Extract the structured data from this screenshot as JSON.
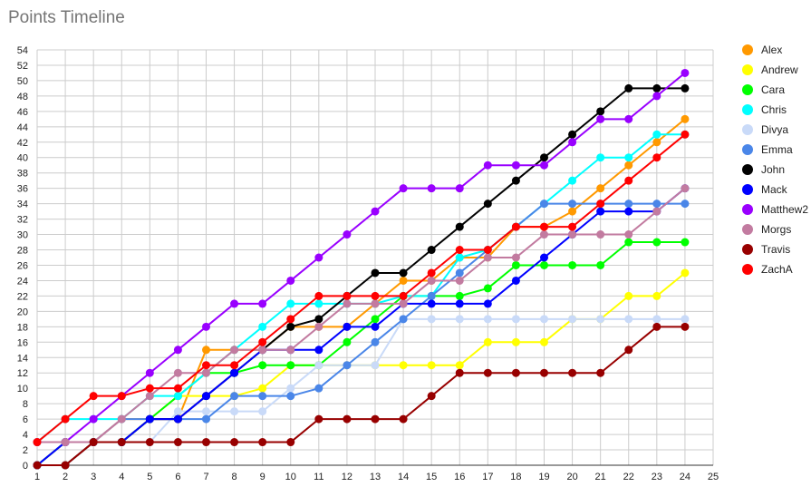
{
  "chart_data": {
    "type": "line",
    "title": "Points Timeline",
    "xlabel": "",
    "ylabel": "",
    "xlim": [
      1,
      25
    ],
    "ylim": [
      0,
      54
    ],
    "x_ticks": [
      1,
      2,
      3,
      4,
      5,
      6,
      7,
      8,
      9,
      10,
      11,
      12,
      13,
      14,
      15,
      16,
      17,
      18,
      19,
      20,
      21,
      22,
      23,
      24,
      25
    ],
    "y_ticks": [
      0,
      2,
      4,
      6,
      8,
      10,
      12,
      14,
      16,
      18,
      20,
      22,
      24,
      26,
      28,
      30,
      32,
      34,
      36,
      38,
      40,
      42,
      44,
      46,
      48,
      50,
      52,
      54
    ],
    "grid": true,
    "legend_position": "right",
    "x": [
      1,
      2,
      3,
      4,
      5,
      6,
      7,
      8,
      9,
      10,
      11,
      12,
      13,
      14,
      15,
      16,
      17,
      18,
      19,
      20,
      21,
      22,
      23,
      24
    ],
    "series": [
      {
        "name": "Alex",
        "color": "#ff9900",
        "values": [
          0,
          3,
          3,
          6,
          6,
          6,
          15,
          15,
          15,
          18,
          18,
          18,
          21,
          24,
          24,
          27,
          27,
          31,
          31,
          33,
          36,
          39,
          42,
          45
        ]
      },
      {
        "name": "Andrew",
        "color": "#ffff00",
        "values": [
          0,
          3,
          3,
          3,
          6,
          9,
          9,
          9,
          10,
          13,
          13,
          13,
          13,
          13,
          13,
          13,
          16,
          16,
          16,
          19,
          19,
          22,
          22,
          25
        ]
      },
      {
        "name": "Cara",
        "color": "#00ff00",
        "values": [
          0,
          3,
          3,
          3,
          6,
          9,
          12,
          12,
          13,
          13,
          13,
          16,
          19,
          22,
          22,
          22,
          23,
          26,
          26,
          26,
          26,
          29,
          29,
          29
        ]
      },
      {
        "name": "Chris",
        "color": "#00ffff",
        "values": [
          3,
          6,
          6,
          6,
          9,
          9,
          12,
          15,
          18,
          21,
          21,
          21,
          21,
          22,
          22,
          27,
          28,
          31,
          34,
          37,
          40,
          40,
          43,
          43
        ]
      },
      {
        "name": "Divya",
        "color": "#c9daf8",
        "values": [
          0,
          0,
          3,
          3,
          3,
          7,
          7,
          7,
          7,
          10,
          13,
          13,
          13,
          19,
          19,
          19,
          19,
          19,
          19,
          19,
          19,
          19,
          19,
          19
        ]
      },
      {
        "name": "Emma",
        "color": "#4a86e8",
        "values": [
          0,
          3,
          3,
          6,
          6,
          6,
          6,
          9,
          9,
          9,
          10,
          13,
          16,
          19,
          22,
          25,
          28,
          31,
          34,
          34,
          34,
          34,
          34,
          34
        ]
      },
      {
        "name": "John",
        "color": "#000000",
        "values": [
          0,
          0,
          3,
          3,
          6,
          6,
          9,
          12,
          15,
          18,
          19,
          22,
          25,
          25,
          28,
          31,
          34,
          37,
          40,
          43,
          46,
          49,
          49,
          49
        ]
      },
      {
        "name": "Mack",
        "color": "#0000ff",
        "values": [
          0,
          3,
          3,
          3,
          6,
          6,
          9,
          12,
          15,
          15,
          15,
          18,
          18,
          21,
          21,
          21,
          21,
          24,
          27,
          30,
          33,
          33,
          33,
          36
        ]
      },
      {
        "name": "Matthew2",
        "color": "#9900ff",
        "values": [
          3,
          3,
          6,
          9,
          12,
          15,
          18,
          21,
          21,
          24,
          27,
          30,
          33,
          36,
          36,
          36,
          39,
          39,
          39,
          42,
          45,
          45,
          48,
          51
        ]
      },
      {
        "name": "Morgs",
        "color": "#c27ba0",
        "values": [
          3,
          3,
          3,
          6,
          9,
          12,
          12,
          15,
          15,
          15,
          18,
          21,
          21,
          21,
          24,
          24,
          27,
          27,
          30,
          30,
          30,
          30,
          33,
          36
        ]
      },
      {
        "name": "Travis",
        "color": "#980000",
        "values": [
          0,
          0,
          3,
          3,
          3,
          3,
          3,
          3,
          3,
          3,
          6,
          6,
          6,
          6,
          9,
          12,
          12,
          12,
          12,
          12,
          12,
          15,
          18,
          18
        ]
      },
      {
        "name": "ZachA",
        "color": "#ff0000",
        "values": [
          3,
          6,
          9,
          9,
          10,
          10,
          13,
          13,
          16,
          19,
          22,
          22,
          22,
          22,
          25,
          28,
          28,
          31,
          31,
          31,
          34,
          37,
          40,
          43
        ]
      }
    ]
  }
}
